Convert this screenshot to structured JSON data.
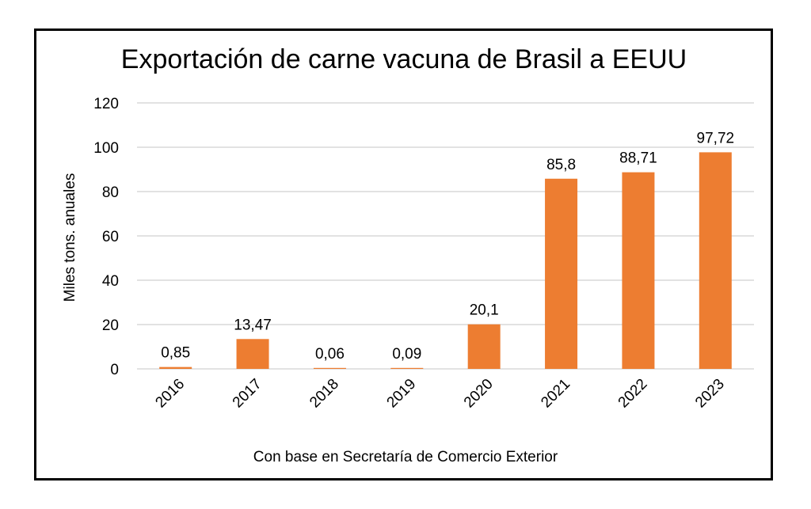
{
  "chart_data": {
    "type": "bar",
    "title": "Exportación de carne vacuna de Brasil a EEUU",
    "xlabel": "Con base en Secretaría de Comercio Exterior",
    "ylabel": "Miles tons. anuales",
    "categories": [
      "2016",
      "2017",
      "2018",
      "2019",
      "2020",
      "2021",
      "2022",
      "2023"
    ],
    "values": [
      0.85,
      13.47,
      0.06,
      0.09,
      20.1,
      85.8,
      88.71,
      97.72
    ],
    "data_labels": [
      "0,85",
      "13,47",
      "0,06",
      "0,09",
      "20,1",
      "85,8",
      "88,71",
      "97,72"
    ],
    "ylim": [
      0,
      120
    ],
    "yticks": [
      0,
      20,
      40,
      60,
      80,
      100,
      120
    ],
    "grid": true,
    "legend": "none",
    "bar_color": "#ED7D31",
    "grid_color": "#D9D9D9"
  }
}
